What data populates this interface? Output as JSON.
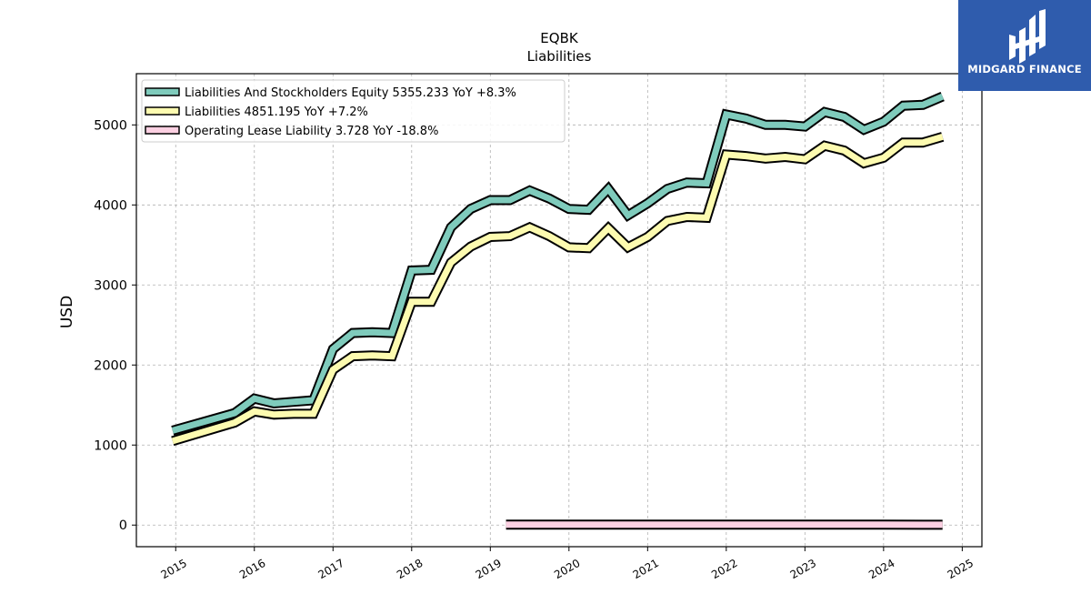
{
  "logo": {
    "text": "MIDGARD FINANCE",
    "background": "#2f5cad"
  },
  "chart_data": {
    "type": "line",
    "title": "EQBK",
    "subtitle": "Liabilities",
    "ylabel": "USD",
    "xlabel": "",
    "xlim": [
      2014.5,
      2025.25
    ],
    "ylim": [
      -270,
      5640
    ],
    "yticks": [
      0,
      1000,
      2000,
      3000,
      4000,
      5000
    ],
    "xticks": [
      "2015",
      "2016",
      "2017",
      "2018",
      "2019",
      "2020",
      "2021",
      "2022",
      "2023",
      "2024",
      "2025"
    ],
    "grid": true,
    "legend_position": "top-left",
    "series": [
      {
        "name": "Liabilities And Stockholders Equity",
        "legend": "Liabilities And Stockholders Equity  5355.233 YoY +8.3%",
        "color": "#7fcbbc",
        "x": [
          2014.96,
          2015.75,
          2016.0,
          2016.25,
          2016.5,
          2016.75,
          2017.0,
          2017.25,
          2017.5,
          2017.75,
          2018.0,
          2018.25,
          2018.5,
          2018.75,
          2019.0,
          2019.25,
          2019.5,
          2019.75,
          2020.0,
          2020.25,
          2020.5,
          2020.75,
          2021.0,
          2021.25,
          2021.5,
          2021.75,
          2022.0,
          2022.25,
          2022.5,
          2022.75,
          2023.0,
          2023.25,
          2023.5,
          2023.75,
          2024.0,
          2024.25,
          2024.5,
          2024.75
        ],
        "y": [
          1180,
          1400,
          1580,
          1520,
          1540,
          1560,
          2200,
          2400,
          2410,
          2400,
          3180,
          3190,
          3720,
          3950,
          4060,
          4060,
          4180,
          4080,
          3950,
          3940,
          4200,
          3870,
          4020,
          4200,
          4280,
          4270,
          5130,
          5080,
          5000,
          5000,
          4980,
          5160,
          5100,
          4940,
          5040,
          5240,
          5250,
          5355
        ]
      },
      {
        "name": "Liabilities",
        "legend": "Liabilities  4851.195 YoY +7.2%",
        "color": "#fdfbb0",
        "x": [
          2014.96,
          2015.75,
          2016.0,
          2016.25,
          2016.5,
          2016.75,
          2017.0,
          2017.25,
          2017.5,
          2017.75,
          2018.0,
          2018.25,
          2018.5,
          2018.75,
          2019.0,
          2019.25,
          2019.5,
          2019.75,
          2020.0,
          2020.25,
          2020.5,
          2020.75,
          2021.0,
          2021.25,
          2021.5,
          2021.75,
          2022.0,
          2022.25,
          2022.5,
          2022.75,
          2023.0,
          2023.25,
          2023.5,
          2023.75,
          2024.0,
          2024.25,
          2024.5,
          2024.75
        ],
        "y": [
          1050,
          1280,
          1420,
          1380,
          1390,
          1390,
          1940,
          2110,
          2120,
          2110,
          2790,
          2790,
          3280,
          3480,
          3600,
          3610,
          3720,
          3610,
          3470,
          3460,
          3710,
          3470,
          3600,
          3800,
          3850,
          3840,
          4630,
          4610,
          4580,
          4600,
          4570,
          4740,
          4680,
          4520,
          4590,
          4780,
          4780,
          4851
        ]
      },
      {
        "name": "Operating Lease Liability",
        "legend": "Operating Lease Liability  3.728 YoY -18.8%",
        "color": "#fcd0e2",
        "x": [
          2019.2,
          2019.5,
          2020.0,
          2020.5,
          2021.0,
          2021.5,
          2022.0,
          2022.5,
          2023.0,
          2023.5,
          2024.0,
          2024.5,
          2024.75
        ],
        "y": [
          4.5,
          4.8,
          5.0,
          5.1,
          5.0,
          5.1,
          5.3,
          5.2,
          5.0,
          4.8,
          4.6,
          4.2,
          3.728
        ]
      }
    ]
  }
}
